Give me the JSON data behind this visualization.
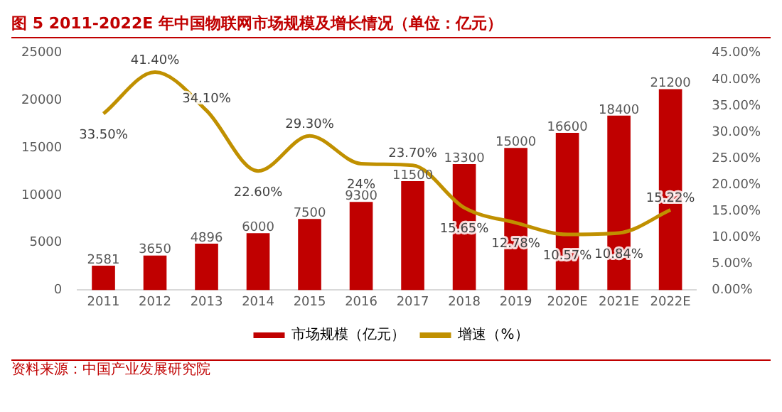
{
  "chart_data": {
    "type": "bar",
    "title": "图 5 2011-2022E 年中国物联网市场规模及增长情况（单位：亿元）",
    "categories": [
      "2011",
      "2012",
      "2013",
      "2014",
      "2015",
      "2016",
      "2017",
      "2018",
      "2019",
      "2020E",
      "2021E",
      "2022E"
    ],
    "series": [
      {
        "name": "市场规模（亿元）",
        "color": "#c00000",
        "values": [
          2581,
          3650,
          4896,
          6000,
          7500,
          9300,
          11500,
          13300,
          15000,
          16600,
          18400,
          21200
        ],
        "value_labels": [
          "2581",
          "3650",
          "4896",
          "6000",
          "7500",
          "9300",
          "11500",
          "13300",
          "15000",
          "16600",
          "18400",
          "21200"
        ]
      },
      {
        "name": "增速（%）",
        "type": "line",
        "axis": "y2",
        "color": "#c09000",
        "values": [
          33.5,
          41.4,
          34.1,
          22.6,
          29.3,
          24,
          23.7,
          15.65,
          12.78,
          10.57,
          10.84,
          15.22
        ],
        "value_labels": [
          "33.50%",
          "41.40%",
          "34.10%",
          "22.60%",
          "29.30%",
          "24%",
          "23.70%",
          "15.65%",
          "12.78%",
          "10.57%",
          "10.84%",
          "15.22%"
        ]
      }
    ],
    "ylim": [
      0,
      25000
    ],
    "yticks": [
      0,
      5000,
      10000,
      15000,
      20000,
      25000
    ],
    "y2lim": [
      0,
      45
    ],
    "y2ticks": [
      {
        "value": 0,
        "label": "0.00%"
      },
      {
        "value": 5,
        "label": "5.00%"
      },
      {
        "value": 10,
        "label": "10.00%"
      },
      {
        "value": 15,
        "label": "15.00%"
      },
      {
        "value": 20,
        "label": "20.00%"
      },
      {
        "value": 25,
        "label": "25.00%"
      },
      {
        "value": 30,
        "label": "30.00%"
      },
      {
        "value": 35,
        "label": "35.00%"
      },
      {
        "value": 40,
        "label": "40.00%"
      },
      {
        "value": 45,
        "label": "45.00%"
      }
    ],
    "grid": false,
    "legend": "bottom",
    "marker": "none",
    "annotations": [
      "资料来源：中国产业发展研究院"
    ]
  }
}
